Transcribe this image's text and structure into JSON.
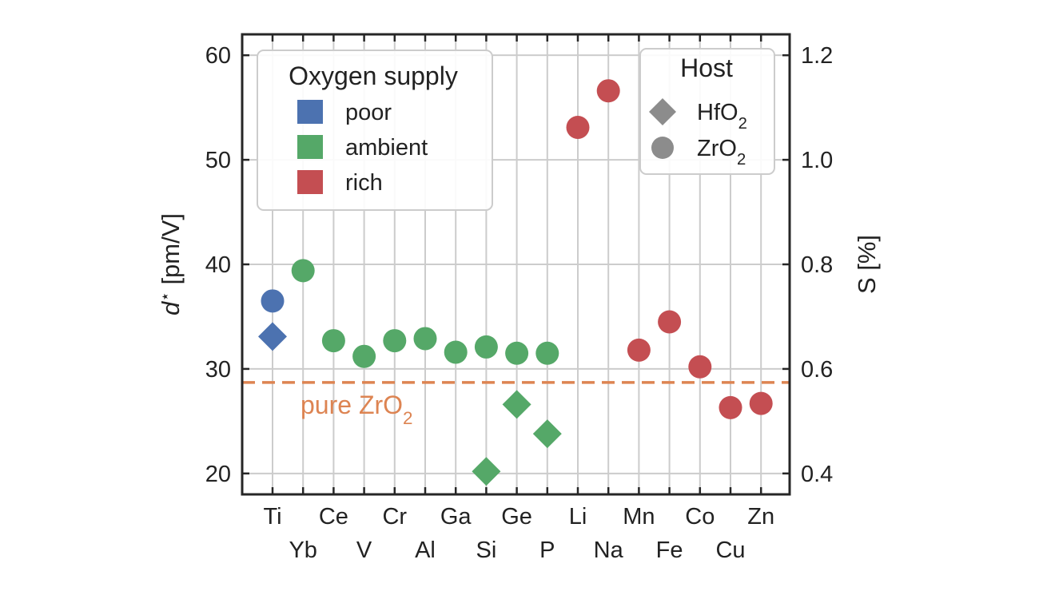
{
  "chart_data": {
    "type": "scatter",
    "ylabel": "d* [pm/V]",
    "ylabel_main": "d",
    "ylabel_sup": "⋆",
    "ylabel_unit": " [pm/V]",
    "ylabel_right": "S [%]",
    "ylim": [
      18,
      62
    ],
    "y_ticks": [
      20,
      30,
      40,
      50,
      60
    ],
    "y2_ticks": [
      "0.4",
      "0.6",
      "0.8",
      "1.0",
      "1.2"
    ],
    "y2_to_y": {
      "scale": 0.02,
      "offset": 0
    },
    "categories": [
      "Ti",
      "Yb",
      "Ce",
      "V",
      "Cr",
      "Al",
      "Ga",
      "Si",
      "Ge",
      "P",
      "Li",
      "Na",
      "Mn",
      "Fe",
      "Co",
      "Cu",
      "Zn"
    ],
    "grid": true,
    "reference_line": {
      "value": 28.7,
      "label": "pure ZrO",
      "label_sub": "2",
      "color": "#dd8452"
    },
    "colors": {
      "poor": "#4c72b0",
      "ambient": "#55a868",
      "rich": "#c44e52",
      "host_marker": "#8c8c8c"
    },
    "points": [
      {
        "category": "Ti",
        "y": 36.5,
        "supply": "poor",
        "host": "ZrO2"
      },
      {
        "category": "Ti",
        "y": 33.1,
        "supply": "poor",
        "host": "HfO2"
      },
      {
        "category": "Yb",
        "y": 39.4,
        "supply": "ambient",
        "host": "ZrO2"
      },
      {
        "category": "Ce",
        "y": 32.7,
        "supply": "ambient",
        "host": "ZrO2"
      },
      {
        "category": "V",
        "y": 31.2,
        "supply": "ambient",
        "host": "ZrO2"
      },
      {
        "category": "Cr",
        "y": 32.7,
        "supply": "ambient",
        "host": "ZrO2"
      },
      {
        "category": "Al",
        "y": 32.9,
        "supply": "ambient",
        "host": "ZrO2"
      },
      {
        "category": "Ga",
        "y": 31.6,
        "supply": "ambient",
        "host": "ZrO2"
      },
      {
        "category": "Si",
        "y": 32.1,
        "supply": "ambient",
        "host": "ZrO2"
      },
      {
        "category": "Si",
        "y": 20.2,
        "supply": "ambient",
        "host": "HfO2"
      },
      {
        "category": "Ge",
        "y": 31.5,
        "supply": "ambient",
        "host": "ZrO2"
      },
      {
        "category": "Ge",
        "y": 26.6,
        "supply": "ambient",
        "host": "HfO2"
      },
      {
        "category": "P",
        "y": 31.5,
        "supply": "ambient",
        "host": "ZrO2"
      },
      {
        "category": "P",
        "y": 23.8,
        "supply": "ambient",
        "host": "HfO2"
      },
      {
        "category": "Li",
        "y": 53.1,
        "supply": "rich",
        "host": "ZrO2"
      },
      {
        "category": "Na",
        "y": 56.6,
        "supply": "rich",
        "host": "ZrO2"
      },
      {
        "category": "Mn",
        "y": 31.8,
        "supply": "rich",
        "host": "ZrO2"
      },
      {
        "category": "Fe",
        "y": 34.5,
        "supply": "rich",
        "host": "ZrO2"
      },
      {
        "category": "Co",
        "y": 30.2,
        "supply": "rich",
        "host": "ZrO2"
      },
      {
        "category": "Cu",
        "y": 26.3,
        "supply": "rich",
        "host": "ZrO2"
      },
      {
        "category": "Zn",
        "y": 26.7,
        "supply": "rich",
        "host": "ZrO2"
      }
    ],
    "legends": {
      "supply": {
        "title": "Oxygen supply",
        "placement": "upper-left",
        "items": [
          {
            "label": "poor",
            "color": "#4c72b0"
          },
          {
            "label": "ambient",
            "color": "#55a868"
          },
          {
            "label": "rich",
            "color": "#c44e52"
          }
        ]
      },
      "host": {
        "title": "Host",
        "placement": "upper-right",
        "items": [
          {
            "label": "HfO",
            "sub": "2",
            "marker": "diamond"
          },
          {
            "label": "ZrO",
            "sub": "2",
            "marker": "circle"
          }
        ]
      }
    }
  }
}
